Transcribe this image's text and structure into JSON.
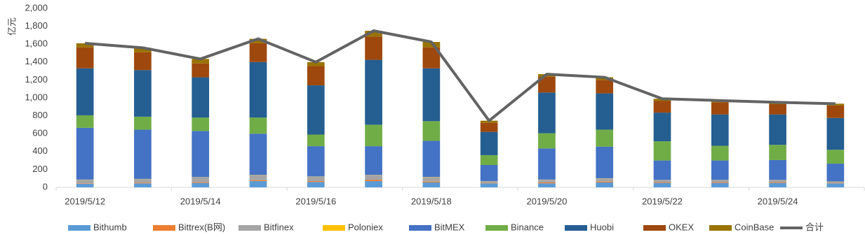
{
  "chart_data": {
    "type": "stacked-bar-line",
    "y_label": "亿元",
    "categories": [
      "2019/5/12",
      null,
      "2019/5/14",
      null,
      "2019/5/16",
      null,
      "2019/5/18",
      null,
      "2019/5/20",
      null,
      "2019/5/22",
      null,
      "2019/5/24",
      null
    ],
    "ylim": [
      0,
      2000
    ],
    "yticks": [
      0,
      200,
      400,
      600,
      800,
      {
        "value": 1000,
        "label": "1,000"
      },
      {
        "value": 1200,
        "label": "1,200"
      },
      {
        "value": 1400,
        "label": "1,400"
      },
      {
        "value": 1600,
        "label": "1,600"
      },
      {
        "value": 1800,
        "label": "1,800"
      },
      {
        "value": 2000,
        "label": "2,000"
      }
    ],
    "series": [
      {
        "name": "Bithumb",
        "color": "#5b9bd5",
        "values": [
          40,
          45,
          50,
          70,
          60,
          70,
          55,
          45,
          45,
          55,
          50,
          50,
          50,
          45
        ]
      },
      {
        "name": "Bittrex(B网)",
        "color": "#ed7d31",
        "values": [
          5,
          8,
          8,
          10,
          10,
          15,
          10,
          5,
          10,
          10,
          8,
          8,
          8,
          5
        ]
      },
      {
        "name": "Bitfinex",
        "color": "#a5a5a5",
        "values": [
          40,
          40,
          55,
          55,
          50,
          50,
          50,
          20,
          30,
          35,
          25,
          25,
          25,
          15
        ]
      },
      {
        "name": "Poloniex",
        "color": "#ffc000",
        "values": [
          2,
          2,
          2,
          3,
          2,
          3,
          2,
          1,
          2,
          2,
          1,
          1,
          1,
          1
        ]
      },
      {
        "name": "BitMEX",
        "color": "#4472c4",
        "values": [
          578,
          550,
          515,
          462,
          338,
          322,
          403,
          179,
          348,
          353,
          216,
          216,
          221,
          199
        ]
      },
      {
        "name": "Binance",
        "color": "#70ad47",
        "values": [
          140,
          145,
          150,
          180,
          130,
          240,
          220,
          110,
          170,
          190,
          215,
          165,
          170,
          155
        ]
      },
      {
        "name": "Huobi",
        "color": "#255e91",
        "values": [
          525,
          520,
          450,
          620,
          550,
          725,
          590,
          260,
          455,
          405,
          320,
          350,
          340,
          355
        ]
      },
      {
        "name": "OKEX",
        "color": "#9e480e",
        "values": [
          235,
          200,
          155,
          210,
          215,
          260,
          235,
          100,
          175,
          150,
          130,
          135,
          115,
          140
        ]
      },
      {
        "name": "CoinBase",
        "color": "#997300",
        "values": [
          45,
          50,
          50,
          50,
          45,
          65,
          60,
          25,
          30,
          30,
          25,
          20,
          20,
          20
        ]
      }
    ],
    "line": {
      "name": "合计",
      "color": "#636363",
      "values": [
        1610,
        1560,
        1435,
        1660,
        1400,
        1750,
        1625,
        745,
        1265,
        1230,
        990,
        970,
        950,
        935
      ]
    }
  }
}
